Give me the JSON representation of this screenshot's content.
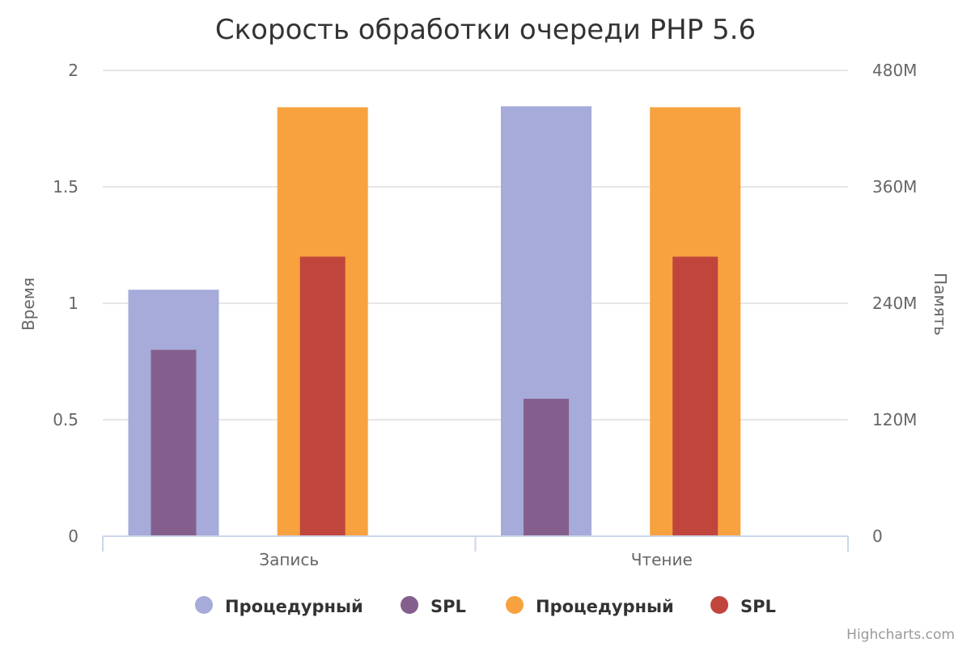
{
  "chart_data": {
    "type": "bar",
    "title": "Скорость обработки очереди PHP 5.6",
    "categories": [
      "Запись",
      "Чтение"
    ],
    "y_axis_left": {
      "title": "Время",
      "range": [
        0,
        2
      ],
      "ticks": [
        "0",
        "0.5",
        "1",
        "1.5",
        "2"
      ],
      "tick_values": [
        0,
        0.5,
        1,
        1.5,
        2
      ]
    },
    "y_axis_right": {
      "title": "Память",
      "range": [
        0,
        480
      ],
      "ticks": [
        "0",
        "120M",
        "240M",
        "360M",
        "480M"
      ],
      "tick_values": [
        0,
        120,
        240,
        360,
        480
      ]
    },
    "series": [
      {
        "name": "Процедурный",
        "axis": "right",
        "group": 0,
        "layer": "wide",
        "color": "#a6abd9",
        "values": [
          254,
          443
        ]
      },
      {
        "name": "SPL",
        "axis": "left",
        "group": 0,
        "layer": "narrow",
        "color": "#845f8d",
        "values": [
          0.8,
          0.59
        ]
      },
      {
        "name": "Процедурный",
        "axis": "right",
        "group": 1,
        "layer": "wide",
        "color": "#f7a23f",
        "values": [
          442,
          442
        ]
      },
      {
        "name": "SPL",
        "axis": "left",
        "group": 1,
        "layer": "narrow",
        "color": "#c0463d",
        "values": [
          1.2,
          1.2
        ]
      }
    ],
    "grid": true,
    "legend_position": "bottom-center"
  },
  "credits": "Highcharts.com"
}
